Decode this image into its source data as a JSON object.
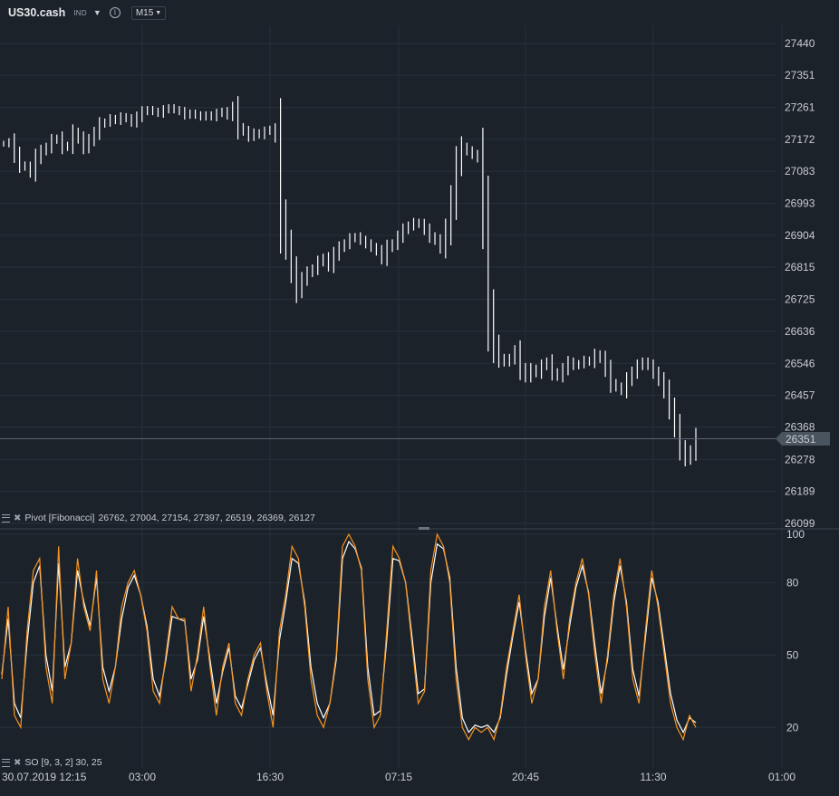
{
  "header": {
    "symbol": "US30.cash",
    "type_badge": "IND",
    "timeframe": "M15",
    "icons": [
      "chevron-down-icon",
      "info-icon"
    ]
  },
  "studies": {
    "pivot": {
      "name": "Pivot [Fibonacci]",
      "values": "26762, 27004, 27154, 27397, 26519, 26369, 26127"
    },
    "so": {
      "name": "SO [9, 3, 2] 30, 25"
    }
  },
  "colors": {
    "background": "#1b222a",
    "grid": "#27313b",
    "candle": "#ffffff",
    "stoch_k": "#f7931e",
    "stoch_d": "#ffffff",
    "price_line": "#5a6470",
    "price_label_bg": "#4a545e"
  },
  "chart_data": [
    {
      "type": "candlestick",
      "ylim": [
        26099,
        27440
      ],
      "y_ticks": [
        "27440",
        "27351",
        "27261",
        "27172",
        "27083",
        "26993",
        "26904",
        "26815",
        "26725",
        "26636",
        "26546",
        "26457",
        "26368",
        "26278",
        "26189",
        "26099"
      ],
      "x_ticks": [
        "30.07.2019 12:15",
        "03:00",
        "16:30",
        "07:15",
        "20:45",
        "11:30",
        "01:00"
      ],
      "current_price": "26351",
      "grid": true,
      "series": [
        {
          "values": [
            27160,
            27165,
            27130,
            27100,
            27095,
            27080,
            27120,
            27140,
            27150,
            27170,
            27175,
            27150,
            27155,
            27190,
            27175,
            27150,
            27170,
            27190,
            27215,
            27220,
            27230,
            27225,
            27235,
            27230,
            27220,
            27235,
            27250,
            27255,
            27250,
            27245,
            27255,
            27260,
            27255,
            27250,
            27240,
            27245,
            27240,
            27235,
            27240,
            27235,
            27245,
            27250,
            27240,
            27260,
            27205,
            27195,
            27180,
            27190,
            27185,
            27195,
            27200,
            27180,
            26960,
            26880,
            26810,
            26750,
            26780,
            26800,
            26810,
            26830,
            26840,
            26820,
            26850,
            26870,
            26880,
            26895,
            26900,
            26890,
            26880,
            26870,
            26860,
            26840,
            26870,
            26880,
            26900,
            26920,
            26930,
            26940,
            26935,
            26920,
            26900,
            26890,
            26870,
            26920,
            27000,
            27100,
            27150,
            27140,
            27130,
            27120,
            26950,
            26700,
            26600,
            26560,
            26550,
            26560,
            26580,
            26530,
            26510,
            26530,
            26520,
            26540,
            26550,
            26520,
            26510,
            26530,
            26550,
            26540,
            26545,
            26555,
            26550,
            26570,
            26560,
            26530,
            26490,
            26480,
            26470,
            26500,
            26520,
            26540,
            26550,
            26540,
            26520,
            26500,
            26470,
            26420,
            26370,
            26310,
            26280,
            26300,
            26340
          ]
        }
      ]
    },
    {
      "type": "line",
      "ylim": [
        10,
        100
      ],
      "y_ticks": [
        "100",
        "80",
        "50",
        "20"
      ],
      "series": [
        {
          "values": [
            40,
            70,
            25,
            20,
            60,
            85,
            90,
            45,
            30,
            95,
            40,
            55,
            90,
            70,
            60,
            85,
            40,
            30,
            45,
            70,
            80,
            85,
            75,
            60,
            35,
            30,
            50,
            70,
            65,
            65,
            35,
            50,
            70,
            45,
            25,
            45,
            55,
            30,
            25,
            40,
            50,
            55,
            35,
            20,
            60,
            75,
            95,
            90,
            70,
            40,
            25,
            20,
            30,
            50,
            95,
            100,
            95,
            85,
            40,
            20,
            25,
            60,
            95,
            90,
            80,
            55,
            30,
            35,
            85,
            100,
            95,
            80,
            40,
            20,
            15,
            20,
            18,
            20,
            15,
            25,
            45,
            60,
            75,
            50,
            30,
            40,
            70,
            85,
            60,
            40,
            65,
            80,
            90,
            75,
            50,
            30,
            50,
            75,
            90,
            70,
            40,
            30,
            60,
            85,
            70,
            50,
            30,
            20,
            15,
            25,
            20
          ]
        },
        {
          "values": [
            42,
            65,
            30,
            24,
            55,
            80,
            87,
            50,
            35,
            88,
            45,
            55,
            85,
            72,
            62,
            82,
            45,
            35,
            45,
            65,
            78,
            83,
            75,
            62,
            40,
            33,
            48,
            66,
            65,
            64,
            40,
            48,
            66,
            48,
            30,
            43,
            53,
            33,
            28,
            38,
            48,
            53,
            38,
            25,
            56,
            72,
            90,
            88,
            72,
            45,
            30,
            24,
            30,
            48,
            90,
            97,
            94,
            86,
            45,
            25,
            27,
            56,
            90,
            89,
            80,
            58,
            34,
            36,
            80,
            96,
            94,
            82,
            45,
            24,
            18,
            21,
            20,
            21,
            18,
            24,
            42,
            58,
            72,
            52,
            34,
            40,
            66,
            82,
            62,
            44,
            62,
            78,
            87,
            76,
            54,
            34,
            48,
            72,
            87,
            72,
            44,
            33,
            57,
            82,
            72,
            53,
            34,
            23,
            18,
            24,
            22
          ]
        }
      ]
    }
  ]
}
